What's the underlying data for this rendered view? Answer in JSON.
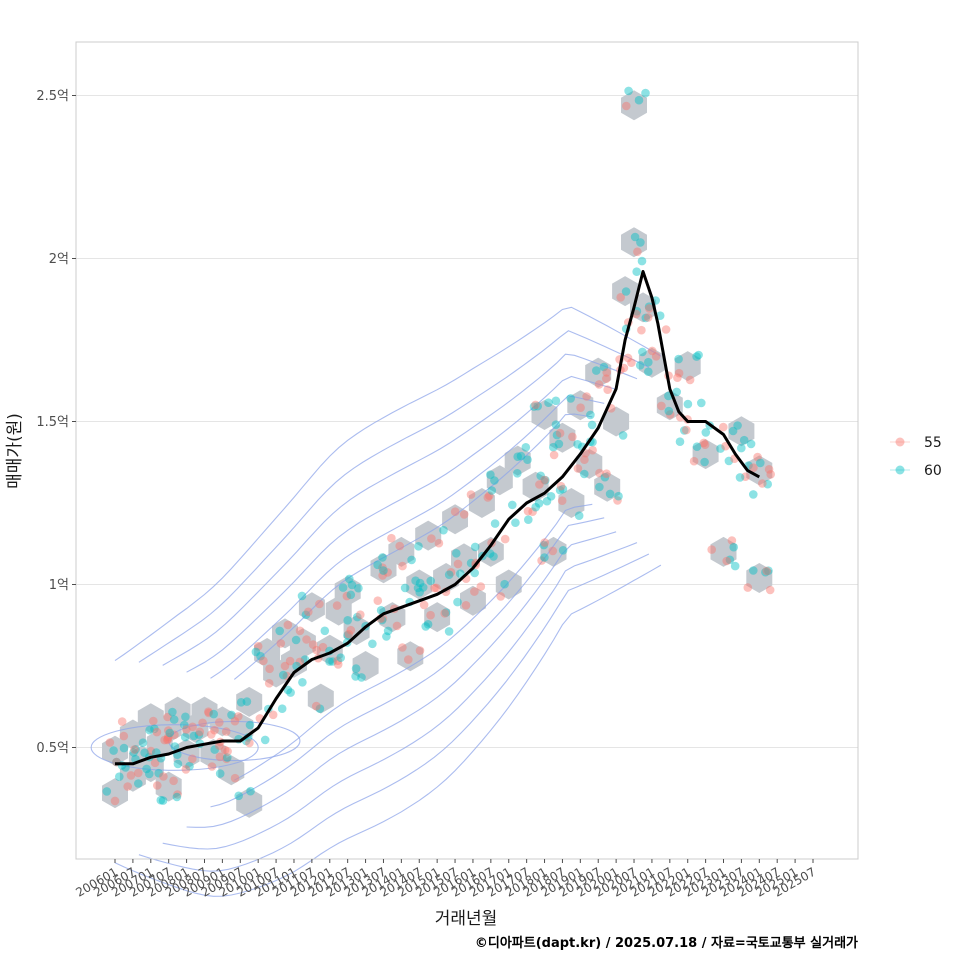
{
  "chart_data": {
    "type": "scatter",
    "xlabel": "거래년월",
    "ylabel": "매매가(원)",
    "caption": "©디아파트(dapt.kr) / 2025.07.18 / 자료=국토교통부 실거래가",
    "x_ticks": [
      "200601",
      "200607",
      "200701",
      "200707",
      "200801",
      "200807",
      "200901",
      "200907",
      "201001",
      "201007",
      "201101",
      "201107",
      "201201",
      "201207",
      "201301",
      "201307",
      "201401",
      "201407",
      "201501",
      "201507",
      "201601",
      "201607",
      "201701",
      "201707",
      "201801",
      "201807",
      "201901",
      "201907",
      "202001",
      "202007",
      "202101",
      "202107",
      "202201",
      "202207",
      "202301",
      "202307",
      "202401",
      "202407",
      "202501",
      "202507"
    ],
    "y_ticks": [
      {
        "value": 0.5,
        "label": "0.5억"
      },
      {
        "value": 1.0,
        "label": "1억"
      },
      {
        "value": 1.5,
        "label": "1.5억"
      },
      {
        "value": 2.0,
        "label": "2억"
      },
      {
        "value": 2.5,
        "label": "2.5억"
      }
    ],
    "ylim": [
      0.17,
      2.67
    ],
    "xlim": [
      -4,
      241
    ],
    "y_unit": "억",
    "grid": true,
    "legend_position": "right",
    "series": [
      {
        "name": "55",
        "color": "#F8766D"
      },
      {
        "name": "60",
        "color": "#00BFC4"
      }
    ],
    "trend_line": [
      [
        0,
        0.45
      ],
      [
        6,
        0.45
      ],
      [
        12,
        0.47
      ],
      [
        18,
        0.48
      ],
      [
        24,
        0.5
      ],
      [
        30,
        0.51
      ],
      [
        36,
        0.52
      ],
      [
        42,
        0.52
      ],
      [
        48,
        0.56
      ],
      [
        54,
        0.65
      ],
      [
        60,
        0.73
      ],
      [
        66,
        0.77
      ],
      [
        72,
        0.79
      ],
      [
        78,
        0.82
      ],
      [
        84,
        0.87
      ],
      [
        90,
        0.91
      ],
      [
        96,
        0.93
      ],
      [
        102,
        0.95
      ],
      [
        108,
        0.97
      ],
      [
        114,
        1.0
      ],
      [
        120,
        1.05
      ],
      [
        126,
        1.12
      ],
      [
        132,
        1.2
      ],
      [
        138,
        1.25
      ],
      [
        144,
        1.28
      ],
      [
        150,
        1.33
      ],
      [
        156,
        1.4
      ],
      [
        162,
        1.48
      ],
      [
        168,
        1.6
      ],
      [
        171,
        1.75
      ],
      [
        174,
        1.85
      ],
      [
        177,
        1.96
      ],
      [
        180,
        1.88
      ],
      [
        182,
        1.8
      ],
      [
        186,
        1.6
      ],
      [
        189,
        1.53
      ],
      [
        192,
        1.5
      ],
      [
        198,
        1.5
      ],
      [
        204,
        1.46
      ],
      [
        208,
        1.4
      ],
      [
        212,
        1.35
      ],
      [
        216,
        1.33
      ]
    ],
    "hexbins": [
      [
        0,
        0.49
      ],
      [
        0,
        0.36
      ],
      [
        6,
        0.54
      ],
      [
        6,
        0.41
      ],
      [
        9,
        0.46
      ],
      [
        12,
        0.59
      ],
      [
        12,
        0.44
      ],
      [
        15,
        0.51
      ],
      [
        18,
        0.56
      ],
      [
        18,
        0.38
      ],
      [
        21,
        0.61
      ],
      [
        24,
        0.48
      ],
      [
        27,
        0.56
      ],
      [
        30,
        0.61
      ],
      [
        33,
        0.48
      ],
      [
        36,
        0.58
      ],
      [
        39,
        0.43
      ],
      [
        42,
        0.56
      ],
      [
        45,
        0.64
      ],
      [
        45,
        0.33
      ],
      [
        51,
        0.79
      ],
      [
        54,
        0.73
      ],
      [
        57,
        0.85
      ],
      [
        60,
        0.76
      ],
      [
        63,
        0.82
      ],
      [
        66,
        0.93
      ],
      [
        69,
        0.65
      ],
      [
        72,
        0.8
      ],
      [
        75,
        0.92
      ],
      [
        78,
        0.98
      ],
      [
        81,
        0.86
      ],
      [
        84,
        0.75
      ],
      [
        90,
        1.05
      ],
      [
        93,
        0.9
      ],
      [
        96,
        1.1
      ],
      [
        99,
        0.78
      ],
      [
        102,
        1.0
      ],
      [
        105,
        1.15
      ],
      [
        108,
        0.9
      ],
      [
        111,
        1.02
      ],
      [
        114,
        1.2
      ],
      [
        117,
        1.08
      ],
      [
        120,
        0.95
      ],
      [
        123,
        1.25
      ],
      [
        126,
        1.1
      ],
      [
        129,
        1.32
      ],
      [
        132,
        1.0
      ],
      [
        135,
        1.38
      ],
      [
        141,
        1.3
      ],
      [
        144,
        1.52
      ],
      [
        147,
        1.1
      ],
      [
        150,
        1.45
      ],
      [
        153,
        1.25
      ],
      [
        156,
        1.55
      ],
      [
        159,
        1.37
      ],
      [
        162,
        1.65
      ],
      [
        165,
        1.3
      ],
      [
        168,
        1.5
      ],
      [
        171,
        1.9
      ],
      [
        174,
        2.05
      ],
      [
        177,
        1.85
      ],
      [
        174,
        2.47
      ],
      [
        180,
        1.68
      ],
      [
        186,
        1.55
      ],
      [
        192,
        1.67
      ],
      [
        198,
        1.4
      ],
      [
        204,
        1.1
      ],
      [
        210,
        1.47
      ],
      [
        216,
        1.35
      ],
      [
        216,
        1.02
      ]
    ],
    "contour_levels": [
      0.62,
      0.52,
      0.43,
      0.34,
      0.26,
      0.19
    ],
    "contour_inner_offsets": [
      0.06,
      0.04
    ]
  },
  "legend_title": "",
  "colors": {
    "panel_border": "#cccccc",
    "grid": "#e5e5e5",
    "hexbin": "#c4c9cf",
    "contour": "#8fa5ea",
    "trend": "#000000"
  }
}
